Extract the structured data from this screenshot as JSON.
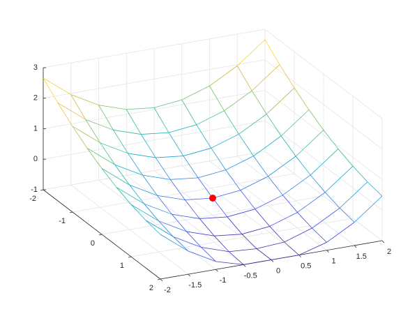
{
  "chart_data": {
    "type": "mesh",
    "x": [
      -2,
      -1.5,
      -1,
      -0.5,
      0,
      0.5,
      1,
      1.5,
      2
    ],
    "y": [
      -2,
      -1.5,
      -1,
      -0.5,
      0,
      0.5,
      1,
      1.5,
      2
    ],
    "z": [
      [
        2.66,
        1.96,
        1.46,
        1.16,
        1.06,
        1.16,
        1.46,
        1.96,
        2.66
      ],
      [
        2.21,
        1.51,
        1.01,
        0.71,
        0.61,
        0.71,
        1.01,
        1.51,
        2.21
      ],
      [
        1.81,
        1.11,
        0.61,
        0.31,
        0.21,
        0.31,
        0.61,
        1.11,
        1.81
      ],
      [
        1.46,
        0.76,
        0.26,
        -0.04,
        -0.14,
        -0.04,
        0.26,
        0.76,
        1.46
      ],
      [
        1.16,
        0.46,
        -0.04,
        -0.34,
        -0.44,
        -0.34,
        -0.04,
        0.46,
        1.16
      ],
      [
        0.91,
        0.21,
        -0.29,
        -0.59,
        -0.69,
        -0.59,
        -0.29,
        0.21,
        0.91
      ],
      [
        0.71,
        0.01,
        -0.49,
        -0.79,
        -0.89,
        -0.79,
        -0.49,
        0.01,
        0.71
      ],
      [
        0.56,
        -0.14,
        -0.64,
        -0.94,
        -1,
        -0.94,
        -0.64,
        -0.14,
        0.56
      ],
      [
        0.46,
        -0.24,
        -0.74,
        -1,
        -1,
        -1,
        -0.74,
        -0.24,
        0.46
      ]
    ],
    "colormap": "parula",
    "xlim": [
      -2,
      2
    ],
    "ylim": [
      -2,
      2
    ],
    "zlim": [
      -1,
      3
    ],
    "xticks": [
      -2,
      -1.5,
      -1,
      -0.5,
      0,
      0.5,
      1,
      1.5,
      2
    ],
    "yticks": [
      -2,
      -1,
      0,
      1,
      2
    ],
    "zticks": [
      -1,
      0,
      1,
      2,
      3
    ],
    "grid": true,
    "point": {
      "x": 0,
      "y": 0,
      "z": -0.44,
      "color": "#ff0000"
    }
  }
}
